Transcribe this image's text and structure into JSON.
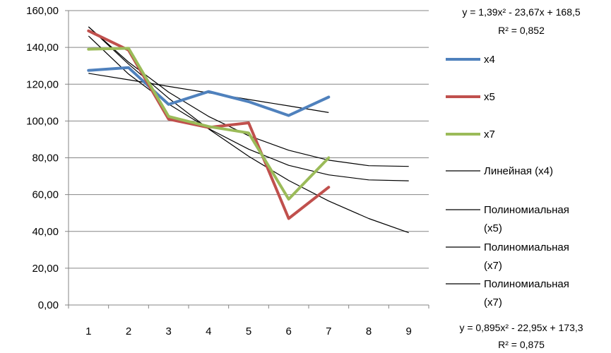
{
  "chart_data": {
    "type": "line",
    "title": "",
    "xlabel": "",
    "ylabel": "",
    "categories": [
      "1",
      "2",
      "3",
      "4",
      "5",
      "6",
      "7",
      "8",
      "9"
    ],
    "xlim": [
      1,
      9
    ],
    "ylim": [
      0,
      160
    ],
    "y_ticks": [
      "0,00",
      "20,00",
      "40,00",
      "60,00",
      "80,00",
      "100,00",
      "120,00",
      "140,00",
      "160,00"
    ],
    "grid": "horizontal",
    "legend": "right",
    "series": [
      {
        "name": "x4",
        "color": "#4F81BD",
        "x": [
          1,
          2,
          3,
          4,
          5,
          6,
          7
        ],
        "values": [
          127.5,
          129,
          109,
          116,
          110.5,
          103,
          113
        ]
      },
      {
        "name": "x5",
        "color": "#C0504D",
        "x": [
          1,
          2,
          3,
          4,
          5,
          6,
          7
        ],
        "values": [
          149,
          138.5,
          101,
          96.5,
          99,
          47,
          64
        ]
      },
      {
        "name": "x7",
        "color": "#9BBB59",
        "x": [
          1,
          2,
          3,
          4,
          5,
          6,
          7
        ],
        "values": [
          139,
          139.5,
          102.5,
          97,
          93.5,
          57.5,
          80
        ]
      }
    ],
    "trendlines": [
      {
        "name": "Линейная (x4)",
        "type": "linear",
        "color": "#000000",
        "x_range": [
          1,
          7
        ],
        "values": [
          125.9,
          122.4,
          118.8,
          115.3,
          111.7,
          108.2,
          104.6
        ]
      },
      {
        "name": "Полиномиальная (x5)",
        "type": "polynomial",
        "color": "#000000",
        "x_range": [
          1,
          9
        ],
        "values": [
          151.2,
          132,
          115.7,
          102.5,
          92.0,
          84.1,
          78.7,
          75.7,
          75.3
        ]
      },
      {
        "name": "Полиномиальная (x7)",
        "type": "polynomial",
        "color": "#000000",
        "x_range": [
          1,
          9
        ],
        "values": [
          146.2,
          125.5,
          109.2,
          95.9,
          84.7,
          75.9,
          70.7,
          68,
          67.5
        ]
      },
      {
        "name": "Полиномиальная (x7)",
        "type": "polynomial",
        "color": "#000000",
        "x_range": [
          1,
          9
        ],
        "values": [
          151.2,
          130.9,
          112.4,
          95.7,
          80.8,
          67.7,
          56.5,
          47.0,
          39.3
        ]
      }
    ],
    "annotations": [
      {
        "text": "y = 1,39x² - 23,67x + 168,5"
      },
      {
        "text": "R² = 0,852"
      },
      {
        "text": "y = 0,895x² - 22,95x + 173,3"
      },
      {
        "text": "R² = 0,875"
      }
    ]
  }
}
